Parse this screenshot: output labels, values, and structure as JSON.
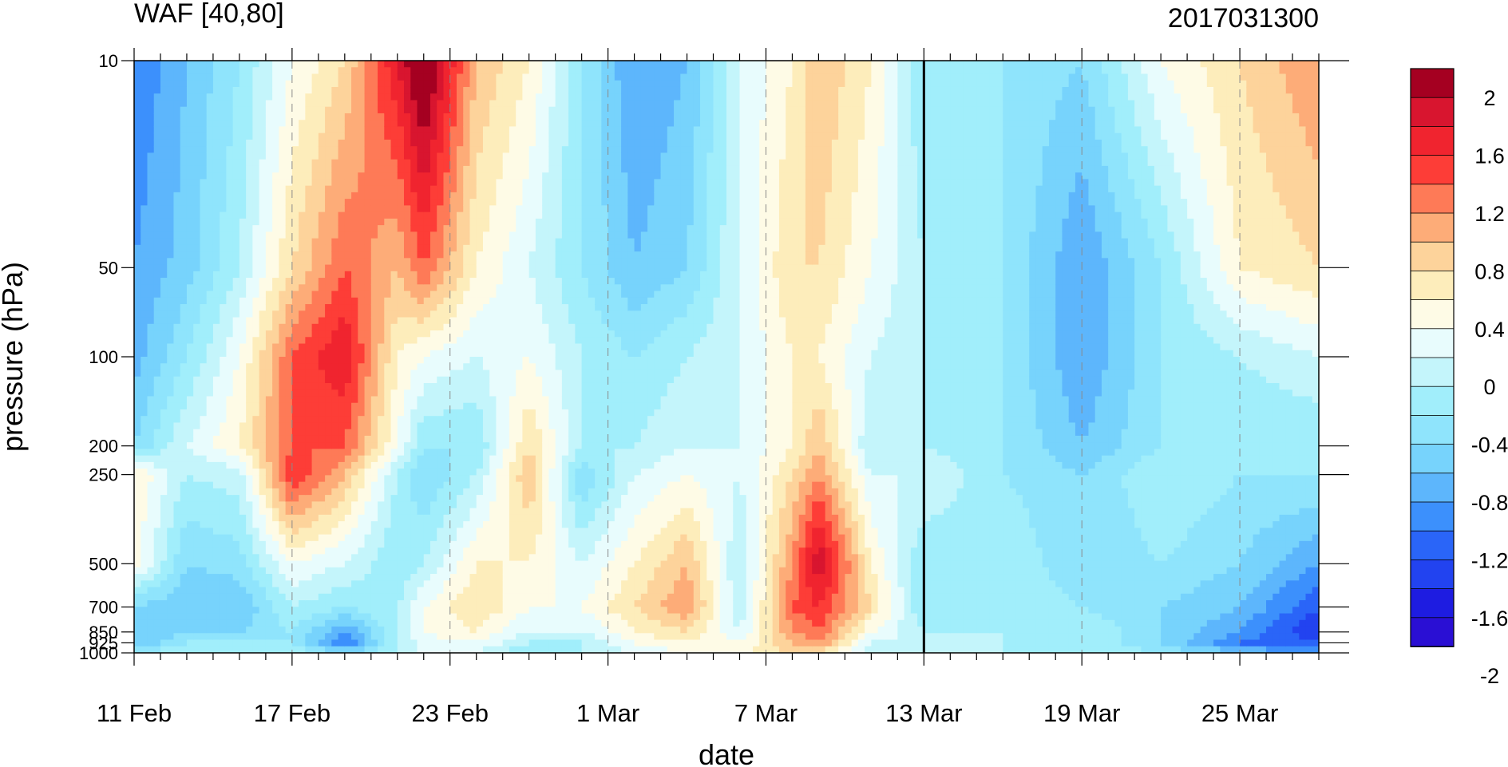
{
  "chart_data": {
    "type": "heatmap",
    "title_left": "WAF [40,80]",
    "title_right": "2017031300",
    "xlabel": "date",
    "ylabel": "pressure (hPa)",
    "x_tick_labels": [
      "11 Feb",
      "17 Feb",
      "23 Feb",
      "1 Mar",
      "7 Mar",
      "13 Mar",
      "19 Mar",
      "25 Mar"
    ],
    "x_tick_days": [
      0,
      6,
      12,
      18,
      24,
      30,
      36,
      42
    ],
    "x_range_days": [
      0,
      45
    ],
    "y_tick_labels": [
      "10",
      "50",
      "100",
      "200",
      "250",
      "500",
      "700",
      "850",
      "925",
      "1000"
    ],
    "y_levels": [
      10,
      50,
      100,
      200,
      250,
      500,
      700,
      850,
      925,
      1000
    ],
    "y_scale": "log",
    "current_date_marker": "13 Mar",
    "colorbar_labels": [
      "2",
      "1.6",
      "1.2",
      "0.8",
      "0.4",
      "0",
      "-0.4",
      "-0.8",
      "-1.2",
      "-1.6",
      "-2"
    ],
    "colorbar_colors": [
      "#a50021",
      "#d8152f",
      "#f0242f",
      "#fd3d37",
      "#fe7a57",
      "#fdac78",
      "#fdd39b",
      "#fdedbb",
      "#fefbe6",
      "#e8fcfd",
      "#c4f5fb",
      "#a1eefb",
      "#8fe4fc",
      "#77d3fc",
      "#5db6fc",
      "#3c90fc",
      "#2a65f8",
      "#2243f0",
      "#1e1ce1",
      "#2a0fd4"
    ],
    "grid": "dashed date lines",
    "legend": "colorbar right",
    "columns": [
      {
        "day": 0,
        "values": [
          -1.2,
          -1.0,
          -0.9,
          -0.6,
          0.4,
          0.3,
          -0.6,
          -0.8,
          -0.8,
          -0.4
        ]
      },
      {
        "day": 2,
        "values": [
          -0.8,
          -0.7,
          -0.4,
          0.0,
          -0.2,
          -0.6,
          -0.8,
          -0.6,
          -0.4,
          -0.2
        ]
      },
      {
        "day": 4,
        "values": [
          -0.4,
          -0.2,
          0.2,
          0.4,
          -0.1,
          -0.5,
          -0.8,
          -0.6,
          -0.3,
          -0.2
        ]
      },
      {
        "day": 6,
        "values": [
          0.2,
          0.6,
          1.2,
          1.2,
          1.4,
          0.2,
          -0.2,
          -0.4,
          -0.4,
          -0.2
        ]
      },
      {
        "day": 8,
        "values": [
          0.6,
          1.2,
          1.6,
          1.2,
          0.8,
          0.0,
          -0.4,
          -1.0,
          -1.2,
          -0.6
        ]
      },
      {
        "day": 10,
        "values": [
          1.6,
          0.8,
          0.4,
          0.2,
          -0.2,
          -0.4,
          -0.2,
          -0.2,
          -0.2,
          -0.2
        ]
      },
      {
        "day": 11,
        "values": [
          2.2,
          1.2,
          0.2,
          -0.4,
          -0.6,
          -0.2,
          0.2,
          0.2,
          0.1,
          0.0
        ]
      },
      {
        "day": 13,
        "values": [
          0.8,
          0.4,
          0.0,
          -0.4,
          -0.2,
          0.4,
          0.6,
          0.4,
          0.2,
          0.0
        ]
      },
      {
        "day": 15,
        "values": [
          0.4,
          0.0,
          0.2,
          0.6,
          0.8,
          0.4,
          0.2,
          0.0,
          -0.2,
          -0.4
        ]
      },
      {
        "day": 17,
        "values": [
          -0.4,
          -0.4,
          -0.2,
          -0.2,
          -0.6,
          0.0,
          0.2,
          0.0,
          -0.2,
          -0.2
        ]
      },
      {
        "day": 19,
        "values": [
          -1.0,
          -0.8,
          -0.4,
          -0.2,
          0.0,
          0.4,
          0.6,
          0.4,
          0.2,
          0.0
        ]
      },
      {
        "day": 21,
        "values": [
          -0.8,
          -0.6,
          -0.2,
          0.0,
          0.2,
          0.8,
          1.0,
          0.6,
          0.4,
          0.2
        ]
      },
      {
        "day": 23,
        "values": [
          0.0,
          0.0,
          0.0,
          0.0,
          0.0,
          -0.2,
          -0.2,
          0.0,
          0.2,
          0.4
        ]
      },
      {
        "day": 25,
        "values": [
          0.4,
          0.6,
          0.4,
          0.4,
          0.6,
          1.0,
          1.2,
          1.0,
          0.8,
          0.6
        ]
      },
      {
        "day": 26,
        "values": [
          0.8,
          0.6,
          0.4,
          0.8,
          1.0,
          1.8,
          1.4,
          1.2,
          1.0,
          0.6
        ]
      },
      {
        "day": 28,
        "values": [
          0.4,
          0.2,
          0.0,
          -0.2,
          0.0,
          0.4,
          0.6,
          0.2,
          0.0,
          -0.2
        ]
      },
      {
        "day": 30,
        "values": [
          -0.4,
          -0.2,
          -0.2,
          -0.2,
          0.0,
          -0.4,
          -0.4,
          -0.2,
          0.0,
          0.0
        ]
      },
      {
        "day": 33,
        "values": [
          -0.4,
          -0.4,
          -0.4,
          -0.4,
          -0.4,
          -0.2,
          -0.2,
          -0.2,
          -0.2,
          -0.2
        ]
      },
      {
        "day": 36,
        "values": [
          -0.6,
          -1.0,
          -1.0,
          -0.8,
          -0.6,
          -0.6,
          -0.4,
          -0.2,
          -0.2,
          -0.2
        ]
      },
      {
        "day": 39,
        "values": [
          0.2,
          -0.4,
          -0.4,
          -0.4,
          -0.2,
          -0.4,
          -0.6,
          -0.6,
          -0.6,
          -0.4
        ]
      },
      {
        "day": 42,
        "values": [
          0.6,
          0.4,
          -0.2,
          -0.4,
          -0.4,
          -0.6,
          -0.8,
          -1.0,
          -1.2,
          -0.8
        ]
      },
      {
        "day": 45,
        "values": [
          1.0,
          0.6,
          0.0,
          -0.4,
          -0.4,
          -1.0,
          -1.4,
          -1.6,
          -1.4,
          -1.0
        ]
      }
    ]
  }
}
